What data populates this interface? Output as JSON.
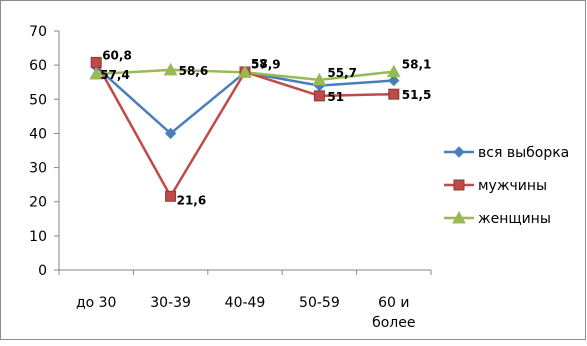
{
  "chart_data": {
    "type": "line",
    "title": "",
    "xlabel": "",
    "ylabel": "",
    "ylim": [
      0,
      70
    ],
    "yticks": [
      0,
      10,
      20,
      30,
      40,
      50,
      60,
      70
    ],
    "grid": false,
    "legend_position": "right",
    "categories": [
      [
        "до 30"
      ],
      [
        "30-39"
      ],
      [
        "40-49"
      ],
      [
        "50-59"
      ],
      [
        "60 и",
        "более"
      ]
    ],
    "series": [
      {
        "name": "вся выборка",
        "color": "#4a7ebb",
        "marker": "diamond",
        "values": [
          59.5,
          40.0,
          57.9,
          54.0,
          55.5
        ],
        "labels": [
          "",
          "",
          "",
          "",
          ""
        ]
      },
      {
        "name": "мужчины",
        "color": "#be4b48",
        "marker": "square",
        "values": [
          60.8,
          21.6,
          58.0,
          51.0,
          51.5
        ],
        "labels": [
          "60,8",
          "21,6",
          "58",
          "51",
          "51,5"
        ]
      },
      {
        "name": "женщины",
        "color": "#98b954",
        "marker": "triangle",
        "values": [
          57.4,
          58.6,
          57.9,
          55.7,
          58.1
        ],
        "labels": [
          "57,4",
          "58,6",
          "57,9",
          "55,7",
          "58,1"
        ]
      }
    ]
  }
}
